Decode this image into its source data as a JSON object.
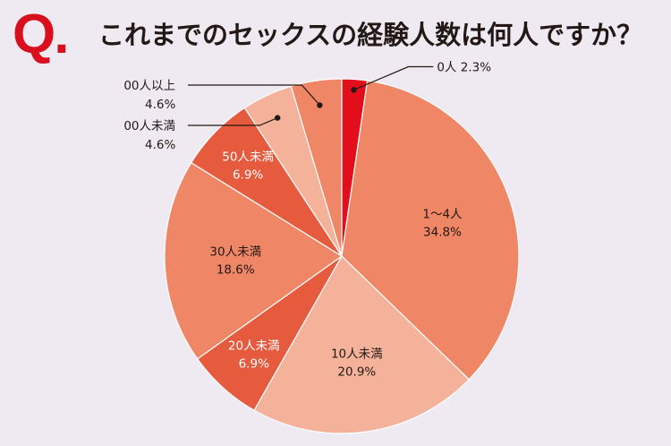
{
  "header": {
    "q_mark": "Q.",
    "question": "これまでのセックスの経験人数は何人ですか？"
  },
  "chart_data": {
    "type": "pie",
    "title": "これまでのセックスの経験人数は何人ですか？",
    "unit": "%",
    "start": "top",
    "direction": "clockwise",
    "slices": [
      {
        "label": "0人",
        "value": 2.3,
        "value_text": "2.3%",
        "color": "#e30e1c",
        "label_style": "callout-right"
      },
      {
        "label": "1〜4人",
        "value": 34.8,
        "value_text": "34.8%",
        "color": "#ef8766",
        "label_style": "inside-dark"
      },
      {
        "label": "10人未満",
        "value": 20.9,
        "value_text": "20.9%",
        "color": "#f5b29b",
        "label_style": "inside-dark"
      },
      {
        "label": "20人未満",
        "value": 6.9,
        "value_text": "6.9%",
        "color": "#e65a3e",
        "label_style": "inside-light"
      },
      {
        "label": "30人未満",
        "value": 18.6,
        "value_text": "18.6%",
        "color": "#ef8766",
        "label_style": "inside-dark"
      },
      {
        "label": "50人未満",
        "value": 6.9,
        "value_text": "6.9%",
        "color": "#e65a3e",
        "label_style": "inside-light"
      },
      {
        "label": "00人未満",
        "value": 4.6,
        "value_text": "4.6%",
        "color": "#f5b29b",
        "label_style": "callout-left"
      },
      {
        "label": "00人以上",
        "value": 4.6,
        "value_text": "4.6%",
        "color": "#ef8766",
        "label_style": "callout-left"
      }
    ]
  }
}
